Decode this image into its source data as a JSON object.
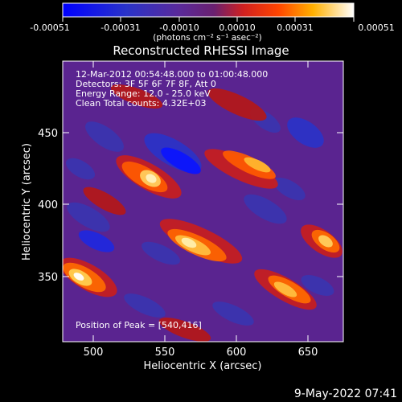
{
  "colorbar": {
    "tick_labels": [
      "-0.00051",
      "-0.00031",
      "-0.00010",
      "0.00010",
      "0.00031",
      "0.00051"
    ],
    "unit_label": "(photons cm⁻² s⁻¹ asec⁻²)",
    "range": [
      -0.00051,
      0.00051
    ]
  },
  "image": {
    "title": "Reconstructed RHESSI Image",
    "info_lines": [
      "12-Mar-2012 00:54:48.000 to 01:00:48.000",
      "Detectors: 3F 5F 6F 7F 8F, Att 0",
      "Energy Range: 12.0 - 25.0 keV",
      "Clean     Total counts: 4.32E+03"
    ],
    "peak_label": "Position of Peak = [540,416]",
    "xlabel": "Heliocentric X (arcsec)",
    "ylabel": "Heliocentric Y (arcsec)",
    "x_ticks": [
      "500",
      "550",
      "600",
      "650"
    ],
    "y_ticks": [
      "350",
      "400",
      "450"
    ],
    "x_range": [
      480,
      672
    ],
    "y_range": [
      302,
      494
    ]
  },
  "footer": {
    "date_stamp": "9-May-2022 07:41"
  }
}
